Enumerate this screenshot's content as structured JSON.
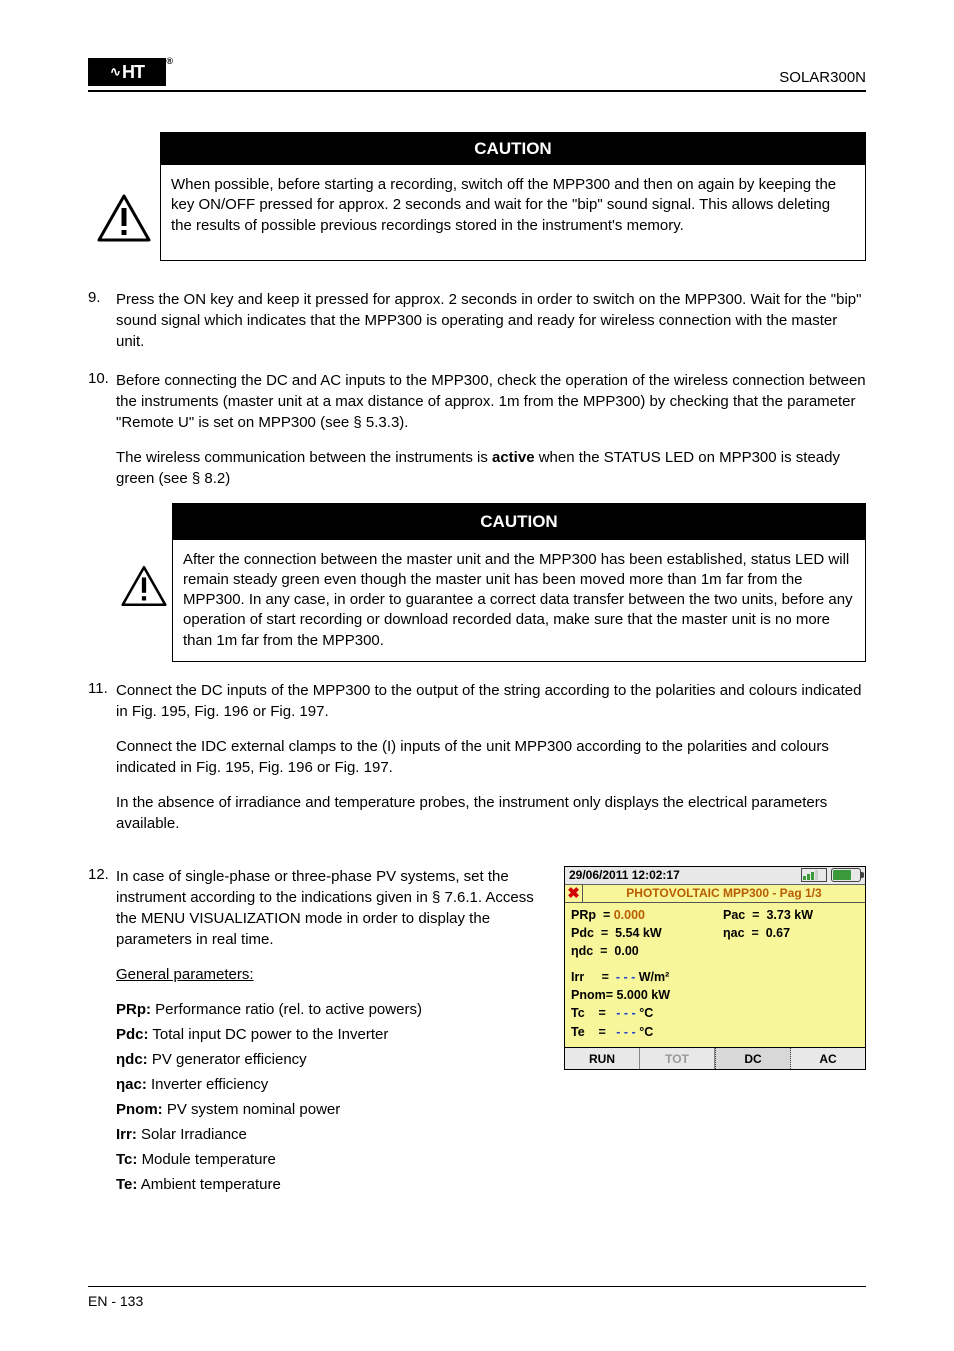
{
  "header": {
    "logo_text": "HT",
    "model": "SOLAR300N"
  },
  "caution": {
    "title": "CAUTION",
    "body": "When possible, before starting a recording, switch off the MPP300 and then on again by keeping the key ON/OFF pressed for approx. 2 seconds and wait for the \"bip\" sound signal. This allows deleting the results of possible previous recordings stored in the instrument's memory."
  },
  "step9": {
    "num": "9.",
    "text": "Press the ON key and keep it pressed for approx. 2 seconds in order to switch on the MPP300. Wait for the \"bip\" sound signal which indicates that the MPP300 is operating and ready for wireless connection with the master unit."
  },
  "step10": {
    "num": "10.",
    "text": "Before connecting the DC and AC inputs to the MPP300, check the operation of the wireless connection between the instruments (master unit at a max distance of approx. 1m from the MPP300) by checking that the parameter \"Remote U\" is set on MPP300 (see § 5.3.3).",
    "led_note_pre": "The wireless communication between the instruments is ",
    "led_note_bold": "active",
    "led_note_post": " when the STATUS LED on MPP300 is steady green (see § 8.2)",
    "caution_title": "CAUTION",
    "caution_body": "After the connection between the master unit and the MPP300 has been established, status LED will remain steady green even though the master unit has been moved more than 1m far from the MPP300. In any case, in order to guarantee a correct data transfer between the two units, before any operation of start recording or download recorded data, make sure that the master unit is no more than 1m far from the MPP300."
  },
  "step11": {
    "num": "11.",
    "para1": "Connect the DC inputs of the MPP300 to the output of the string according to the polarities and colours indicated in Fig. 195, Fig. 196 or Fig. 197.",
    "para2": "Connect the IDC external clamps to the (I) inputs of the unit MPP300 according to the polarities and colours indicated in Fig. 195, Fig. 196 or Fig. 197.",
    "para3": "In the absence of irradiance and temperature probes, the instrument only displays the electrical parameters available."
  },
  "step12": {
    "num": "12.",
    "intro": "In case of single-phase or three-phase PV systems, set the instrument according to the indications given in § 7.6.1. Access the MENU VISUALIZATION mode in order to display the parameters in real time.",
    "general_label": "General parameters:",
    "prp_label": "PRp: ",
    "prp_text": "Performance ratio (rel. to active powers)",
    "pdc_label": "Pdc:",
    "pdc_text": "Total input DC power to the Inverter",
    "ndc_label": "ηdc:",
    "ndc_text": "PV generator efficiency",
    "nac_label": "ηac:",
    "nac_text": "Inverter efficiency",
    "pnom_label": "Pnom:",
    "pnom_text": "PV system nominal power",
    "irr_label": "Irr:",
    "irr_text": "Solar Irradiance",
    "tc_label": "Tc:",
    "tc_text": "Module temperature",
    "te_label": "Te:",
    "te_text": "Ambient temperature"
  },
  "screen": {
    "datetime": "29/06/2011 12:02:17",
    "title": "PHOTOVOLTAIC MPP300 - Pag 1/3",
    "rows_upper": [
      {
        "l_lab": "PRp  = ",
        "l_val": "0.000",
        "l_accent": true,
        "r_lab": "Pac  =  ",
        "r_val": "3.73 kW"
      },
      {
        "l_lab": "Pdc  =  ",
        "l_val": "5.54 kW",
        "l_accent": false,
        "r_lab": "ηac  =  ",
        "r_val": "0.67"
      },
      {
        "l_lab": "ηdc  =  ",
        "l_val": "0.00",
        "l_accent": false
      }
    ],
    "rows_lower": [
      {
        "lab": "Irr     =  ",
        "val": "- - - ",
        "unit": "W/m²",
        "blue": true
      },
      {
        "lab": "Pnom= ",
        "val": "5.000 kW",
        "blue": false
      },
      {
        "lab": "Tc    =   ",
        "val": "- - - ",
        "unit": "°C",
        "blue": true
      },
      {
        "lab": "Te    =   ",
        "val": "- - - ",
        "unit": "°C",
        "blue": true
      }
    ],
    "tabs": [
      "RUN",
      "TOT",
      "DC",
      "AC"
    ],
    "tab_dim_index": 1,
    "tab_active_index": 2
  },
  "footer": {
    "left": "EN - 133",
    "right": ""
  }
}
